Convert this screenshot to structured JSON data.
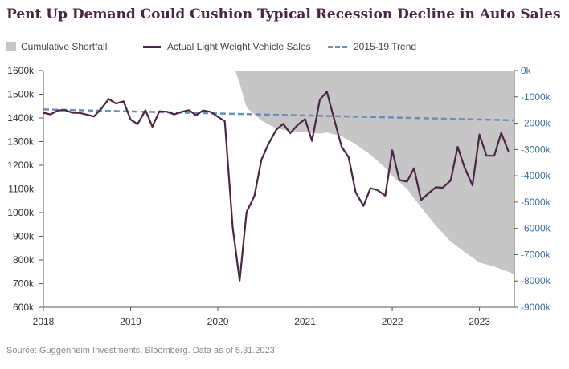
{
  "title": "Pent Up Demand Could Cushion Typical Recession Decline in Auto Sales",
  "source": "Source: Guggenheim Investments, Bloomberg. Data as of 5.31.2023.",
  "legend": [
    {
      "label": "Cumulative Shortfall",
      "type": "area",
      "color": "#c6c6c6"
    },
    {
      "label": "Actual Light Weight Vehicle Sales",
      "type": "line",
      "color": "#4a2545"
    },
    {
      "label": "2015-19 Trend",
      "type": "dashed",
      "color": "#6a8fb8"
    }
  ],
  "colors": {
    "title": "#4a2545",
    "sales": "#4a2545",
    "trend": "#6a8fb8",
    "shortfall": "#c6c6c6",
    "right_axis": "#3a6ea5"
  },
  "chart_data": {
    "type": "line",
    "title": "Pent Up Demand Could Cushion Typical Recession Decline in Auto Sales",
    "x_range": [
      2018.0,
      2023.4
    ],
    "x_ticks": [
      2018,
      2019,
      2020,
      2021,
      2022,
      2023
    ],
    "x_tick_labels": [
      "2018",
      "2019",
      "2020",
      "2021",
      "2022",
      "2023"
    ],
    "left_axis": {
      "ylim": [
        600,
        1600
      ],
      "ticks": [
        600,
        700,
        800,
        900,
        1000,
        1100,
        1200,
        1300,
        1400,
        1500,
        1600
      ],
      "tick_labels": [
        "600k",
        "700k",
        "800k",
        "900k",
        "1000k",
        "1100k",
        "1200k",
        "1300k",
        "1400k",
        "1500k",
        "1600k"
      ]
    },
    "right_axis": {
      "ylim": [
        -9000,
        0
      ],
      "ticks": [
        0,
        -1000,
        -2000,
        -3000,
        -4000,
        -5000,
        -6000,
        -7000,
        -8000,
        -9000
      ],
      "tick_labels": [
        "0k",
        "-1000k",
        "-2000k",
        "-3000k",
        "-4000k",
        "-5000k",
        "-6000k",
        "-7000k",
        "-8000k",
        "-9000k"
      ]
    },
    "series": [
      {
        "name": "Actual Light Weight Vehicle Sales",
        "axis": "left",
        "points": [
          [
            2018.0,
            1422
          ],
          [
            2018.08,
            1415
          ],
          [
            2018.17,
            1432
          ],
          [
            2018.25,
            1433
          ],
          [
            2018.33,
            1422
          ],
          [
            2018.42,
            1421
          ],
          [
            2018.5,
            1414
          ],
          [
            2018.58,
            1406
          ],
          [
            2018.67,
            1442
          ],
          [
            2018.75,
            1480
          ],
          [
            2018.83,
            1461
          ],
          [
            2018.92,
            1470
          ],
          [
            2019.0,
            1393
          ],
          [
            2019.08,
            1374
          ],
          [
            2019.17,
            1433
          ],
          [
            2019.25,
            1363
          ],
          [
            2019.33,
            1428
          ],
          [
            2019.42,
            1426
          ],
          [
            2019.5,
            1415
          ],
          [
            2019.58,
            1425
          ],
          [
            2019.67,
            1433
          ],
          [
            2019.75,
            1411
          ],
          [
            2019.83,
            1432
          ],
          [
            2019.92,
            1425
          ],
          [
            2020.0,
            1405
          ],
          [
            2020.08,
            1386
          ],
          [
            2020.17,
            938
          ],
          [
            2020.25,
            713
          ],
          [
            2020.33,
            1002
          ],
          [
            2020.42,
            1071
          ],
          [
            2020.5,
            1223
          ],
          [
            2020.58,
            1290
          ],
          [
            2020.67,
            1350
          ],
          [
            2020.75,
            1375
          ],
          [
            2020.83,
            1336
          ],
          [
            2020.92,
            1372
          ],
          [
            2021.0,
            1395
          ],
          [
            2021.08,
            1303
          ],
          [
            2021.17,
            1477
          ],
          [
            2021.25,
            1511
          ],
          [
            2021.33,
            1400
          ],
          [
            2021.42,
            1278
          ],
          [
            2021.5,
            1234
          ],
          [
            2021.58,
            1086
          ],
          [
            2021.67,
            1028
          ],
          [
            2021.75,
            1103
          ],
          [
            2021.83,
            1095
          ],
          [
            2021.92,
            1072
          ],
          [
            2022.0,
            1263
          ],
          [
            2022.08,
            1138
          ],
          [
            2022.17,
            1131
          ],
          [
            2022.25,
            1187
          ],
          [
            2022.33,
            1053
          ],
          [
            2022.42,
            1083
          ],
          [
            2022.5,
            1107
          ],
          [
            2022.58,
            1105
          ],
          [
            2022.67,
            1136
          ],
          [
            2022.75,
            1278
          ],
          [
            2022.83,
            1190
          ],
          [
            2022.92,
            1115
          ],
          [
            2023.0,
            1330
          ],
          [
            2023.08,
            1240
          ],
          [
            2023.17,
            1240
          ],
          [
            2023.25,
            1337
          ],
          [
            2023.33,
            1261
          ]
        ]
      },
      {
        "name": "2015-19 Trend",
        "axis": "left",
        "points": [
          [
            2018.0,
            1436
          ],
          [
            2023.4,
            1390
          ]
        ]
      },
      {
        "name": "Cumulative Shortfall",
        "axis": "right",
        "points": [
          [
            2020.2,
            0
          ],
          [
            2020.25,
            -500
          ],
          [
            2020.33,
            -1400
          ],
          [
            2020.5,
            -1900
          ],
          [
            2020.67,
            -2200
          ],
          [
            2020.83,
            -2300
          ],
          [
            2021.0,
            -2350
          ],
          [
            2021.17,
            -2400
          ],
          [
            2021.25,
            -2350
          ],
          [
            2021.42,
            -2500
          ],
          [
            2021.58,
            -2800
          ],
          [
            2021.75,
            -3200
          ],
          [
            2021.92,
            -3700
          ],
          [
            2022.0,
            -4000
          ],
          [
            2022.17,
            -4500
          ],
          [
            2022.33,
            -5200
          ],
          [
            2022.5,
            -5900
          ],
          [
            2022.67,
            -6500
          ],
          [
            2022.83,
            -6900
          ],
          [
            2023.0,
            -7300
          ],
          [
            2023.17,
            -7450
          ],
          [
            2023.33,
            -7650
          ],
          [
            2023.4,
            -7750
          ]
        ]
      }
    ],
    "grid": false
  }
}
